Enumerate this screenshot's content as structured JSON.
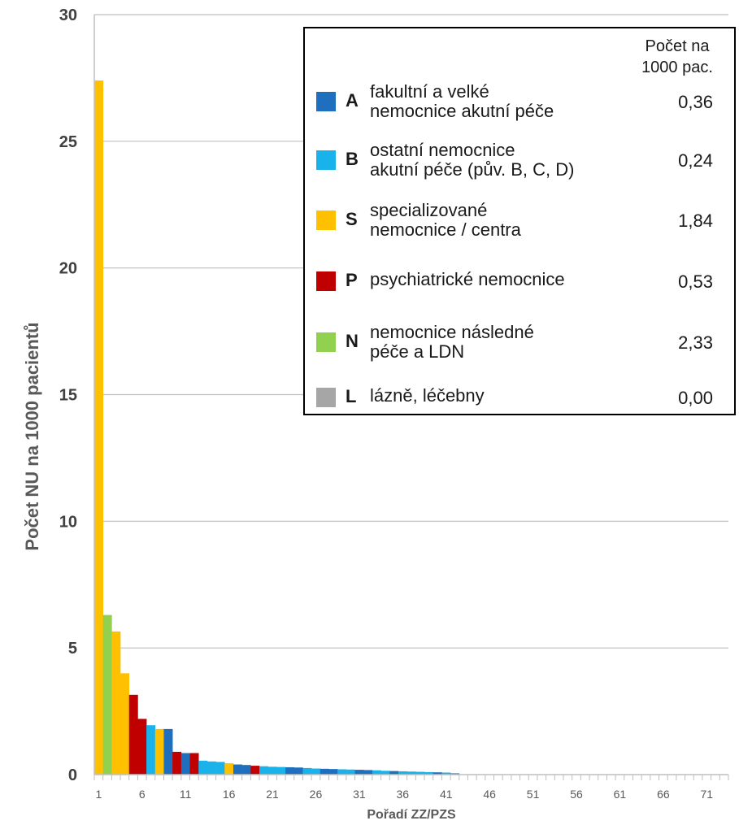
{
  "chart_data": {
    "type": "bar",
    "title": "",
    "xlabel": "Pořadí ZZ/PZS",
    "ylabel": "Počet NU na 1000 pacientů",
    "ylim": [
      0,
      30
    ],
    "yticks": [
      "0",
      "5",
      "10",
      "15",
      "20",
      "25",
      "30"
    ],
    "xticks": [
      "1",
      "6",
      "11",
      "16",
      "21",
      "26",
      "31",
      "36",
      "41",
      "46",
      "51",
      "56",
      "61",
      "66",
      "71"
    ],
    "grid": "horizontal",
    "legend_position": "top-right",
    "bars": [
      {
        "rank": 1,
        "value": 27.4,
        "cat": "S"
      },
      {
        "rank": 2,
        "value": 6.3,
        "cat": "N"
      },
      {
        "rank": 3,
        "value": 5.65,
        "cat": "S"
      },
      {
        "rank": 4,
        "value": 4.0,
        "cat": "S"
      },
      {
        "rank": 5,
        "value": 3.15,
        "cat": "P"
      },
      {
        "rank": 6,
        "value": 2.2,
        "cat": "P"
      },
      {
        "rank": 7,
        "value": 1.95,
        "cat": "B"
      },
      {
        "rank": 8,
        "value": 1.8,
        "cat": "S"
      },
      {
        "rank": 9,
        "value": 1.8,
        "cat": "A"
      },
      {
        "rank": 10,
        "value": 0.9,
        "cat": "P"
      },
      {
        "rank": 11,
        "value": 0.85,
        "cat": "A"
      },
      {
        "rank": 12,
        "value": 0.85,
        "cat": "P"
      },
      {
        "rank": 13,
        "value": 0.55,
        "cat": "B"
      },
      {
        "rank": 14,
        "value": 0.52,
        "cat": "B"
      },
      {
        "rank": 15,
        "value": 0.5,
        "cat": "B"
      },
      {
        "rank": 16,
        "value": 0.45,
        "cat": "S"
      },
      {
        "rank": 17,
        "value": 0.4,
        "cat": "A"
      },
      {
        "rank": 18,
        "value": 0.38,
        "cat": "A"
      },
      {
        "rank": 19,
        "value": 0.35,
        "cat": "P"
      },
      {
        "rank": 20,
        "value": 0.33,
        "cat": "B"
      },
      {
        "rank": 21,
        "value": 0.31,
        "cat": "B"
      },
      {
        "rank": 22,
        "value": 0.3,
        "cat": "B"
      },
      {
        "rank": 23,
        "value": 0.29,
        "cat": "A"
      },
      {
        "rank": 24,
        "value": 0.28,
        "cat": "A"
      },
      {
        "rank": 25,
        "value": 0.26,
        "cat": "B"
      },
      {
        "rank": 26,
        "value": 0.24,
        "cat": "B"
      },
      {
        "rank": 27,
        "value": 0.23,
        "cat": "A"
      },
      {
        "rank": 28,
        "value": 0.22,
        "cat": "A"
      },
      {
        "rank": 29,
        "value": 0.21,
        "cat": "B"
      },
      {
        "rank": 30,
        "value": 0.2,
        "cat": "B"
      },
      {
        "rank": 31,
        "value": 0.19,
        "cat": "A"
      },
      {
        "rank": 32,
        "value": 0.18,
        "cat": "A"
      },
      {
        "rank": 33,
        "value": 0.17,
        "cat": "B"
      },
      {
        "rank": 34,
        "value": 0.15,
        "cat": "B"
      },
      {
        "rank": 35,
        "value": 0.14,
        "cat": "A"
      },
      {
        "rank": 36,
        "value": 0.13,
        "cat": "B"
      },
      {
        "rank": 37,
        "value": 0.12,
        "cat": "B"
      },
      {
        "rank": 38,
        "value": 0.11,
        "cat": "B"
      },
      {
        "rank": 39,
        "value": 0.1,
        "cat": "B"
      },
      {
        "rank": 40,
        "value": 0.09,
        "cat": "A"
      },
      {
        "rank": 41,
        "value": 0.08,
        "cat": "B"
      },
      {
        "rank": 42,
        "value": 0.05,
        "cat": "A"
      },
      {
        "rank": 43,
        "value": 0.0,
        "cat": "B"
      },
      {
        "rank": 44,
        "value": 0.0,
        "cat": "B"
      },
      {
        "rank": 45,
        "value": 0.0,
        "cat": "B"
      },
      {
        "rank": 46,
        "value": 0.0,
        "cat": "B"
      },
      {
        "rank": 47,
        "value": 0.0,
        "cat": "B"
      },
      {
        "rank": 48,
        "value": 0.0,
        "cat": "B"
      },
      {
        "rank": 49,
        "value": 0.0,
        "cat": "B"
      },
      {
        "rank": 50,
        "value": 0.0,
        "cat": "B"
      },
      {
        "rank": 51,
        "value": 0.0,
        "cat": "B"
      },
      {
        "rank": 52,
        "value": 0.0,
        "cat": "B"
      },
      {
        "rank": 53,
        "value": 0.0,
        "cat": "B"
      },
      {
        "rank": 54,
        "value": 0.0,
        "cat": "B"
      },
      {
        "rank": 55,
        "value": 0.0,
        "cat": "B"
      },
      {
        "rank": 56,
        "value": 0.0,
        "cat": "B"
      },
      {
        "rank": 57,
        "value": 0.0,
        "cat": "B"
      },
      {
        "rank": 58,
        "value": 0.0,
        "cat": "B"
      },
      {
        "rank": 59,
        "value": 0.0,
        "cat": "B"
      },
      {
        "rank": 60,
        "value": 0.0,
        "cat": "B"
      },
      {
        "rank": 61,
        "value": 0.0,
        "cat": "B"
      },
      {
        "rank": 62,
        "value": 0.0,
        "cat": "B"
      },
      {
        "rank": 63,
        "value": 0.0,
        "cat": "B"
      },
      {
        "rank": 64,
        "value": 0.0,
        "cat": "B"
      },
      {
        "rank": 65,
        "value": 0.0,
        "cat": "B"
      },
      {
        "rank": 66,
        "value": 0.0,
        "cat": "B"
      },
      {
        "rank": 67,
        "value": 0.0,
        "cat": "B"
      },
      {
        "rank": 68,
        "value": 0.0,
        "cat": "B"
      },
      {
        "rank": 69,
        "value": 0.0,
        "cat": "B"
      },
      {
        "rank": 70,
        "value": 0.0,
        "cat": "B"
      },
      {
        "rank": 71,
        "value": 0.0,
        "cat": "B"
      },
      {
        "rank": 72,
        "value": 0.0,
        "cat": "B"
      },
      {
        "rank": 73,
        "value": 0.0,
        "cat": "B"
      }
    ],
    "colors": {
      "A": "#1f6fbf",
      "B": "#1ab2ea",
      "S": "#ffc000",
      "P": "#c00000",
      "N": "#92d050",
      "L": "#a6a6a6"
    }
  },
  "legend": {
    "header": "Počet na\n1000 pac.",
    "items": [
      {
        "code": "A",
        "label": "fakultní a velké\nnemocnice akutní péče",
        "value": "0,36",
        "color": "#1f6fbf"
      },
      {
        "code": "B",
        "label": "ostatní nemocnice\nakutní péče (pův. B, C, D)",
        "value": "0,24",
        "color": "#1ab2ea"
      },
      {
        "code": "S",
        "label": "specializované\nnemocnice / centra",
        "value": "1,84",
        "color": "#ffc000"
      },
      {
        "code": "P",
        "label": "psychiatrické nemocnice",
        "value": "0,53",
        "color": "#c00000"
      },
      {
        "code": "N",
        "label": "nemocnice následné\npéče a LDN",
        "value": "2,33",
        "color": "#92d050"
      },
      {
        "code": "L",
        "label": "lázně, léčebny",
        "value": "0,00",
        "color": "#a6a6a6"
      }
    ]
  }
}
